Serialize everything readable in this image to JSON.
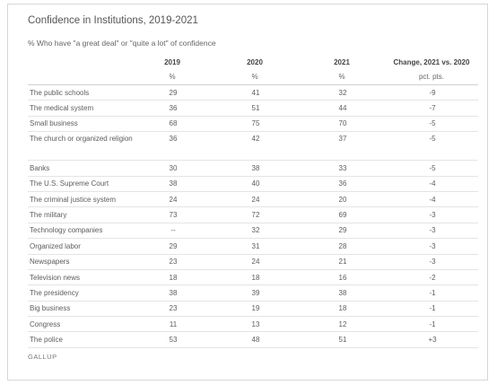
{
  "title": "Confidence in Institutions, 2019-2021",
  "subtitle": "% Who have \"a great deal\" or \"quite a lot\" of confidence",
  "source": "GALLUP",
  "chart_data": {
    "type": "table",
    "columns": [
      "2019",
      "2020",
      "2021",
      "Change, 2021 vs. 2020"
    ],
    "units": [
      "%",
      "%",
      "%",
      "pct. pts."
    ],
    "rows": [
      {
        "label": "The public schools",
        "values": [
          "29",
          "41",
          "32",
          "-9"
        ]
      },
      {
        "label": "The medical system",
        "values": [
          "36",
          "51",
          "44",
          "-7"
        ]
      },
      {
        "label": "Small business",
        "values": [
          "68",
          "75",
          "70",
          "-5"
        ]
      },
      {
        "label": "The church or organized religion",
        "values": [
          "36",
          "42",
          "37",
          "-5"
        ]
      },
      {
        "label": "Banks",
        "values": [
          "30",
          "38",
          "33",
          "-5"
        ]
      },
      {
        "label": "The U.S. Supreme Court",
        "values": [
          "38",
          "40",
          "36",
          "-4"
        ]
      },
      {
        "label": "The criminal justice system",
        "values": [
          "24",
          "24",
          "20",
          "-4"
        ]
      },
      {
        "label": "The military",
        "values": [
          "73",
          "72",
          "69",
          "-3"
        ]
      },
      {
        "label": "Technology companies",
        "values": [
          "--",
          "32",
          "29",
          "-3"
        ]
      },
      {
        "label": "Organized labor",
        "values": [
          "29",
          "31",
          "28",
          "-3"
        ]
      },
      {
        "label": "Newspapers",
        "values": [
          "23",
          "24",
          "21",
          "-3"
        ]
      },
      {
        "label": "Television news",
        "values": [
          "18",
          "18",
          "16",
          "-2"
        ]
      },
      {
        "label": "The presidency",
        "values": [
          "38",
          "39",
          "38",
          "-1"
        ]
      },
      {
        "label": "Big business",
        "values": [
          "23",
          "19",
          "18",
          "-1"
        ]
      },
      {
        "label": "Congress",
        "values": [
          "11",
          "13",
          "12",
          "-1"
        ]
      },
      {
        "label": "The police",
        "values": [
          "53",
          "48",
          "51",
          "+3"
        ]
      }
    ]
  }
}
